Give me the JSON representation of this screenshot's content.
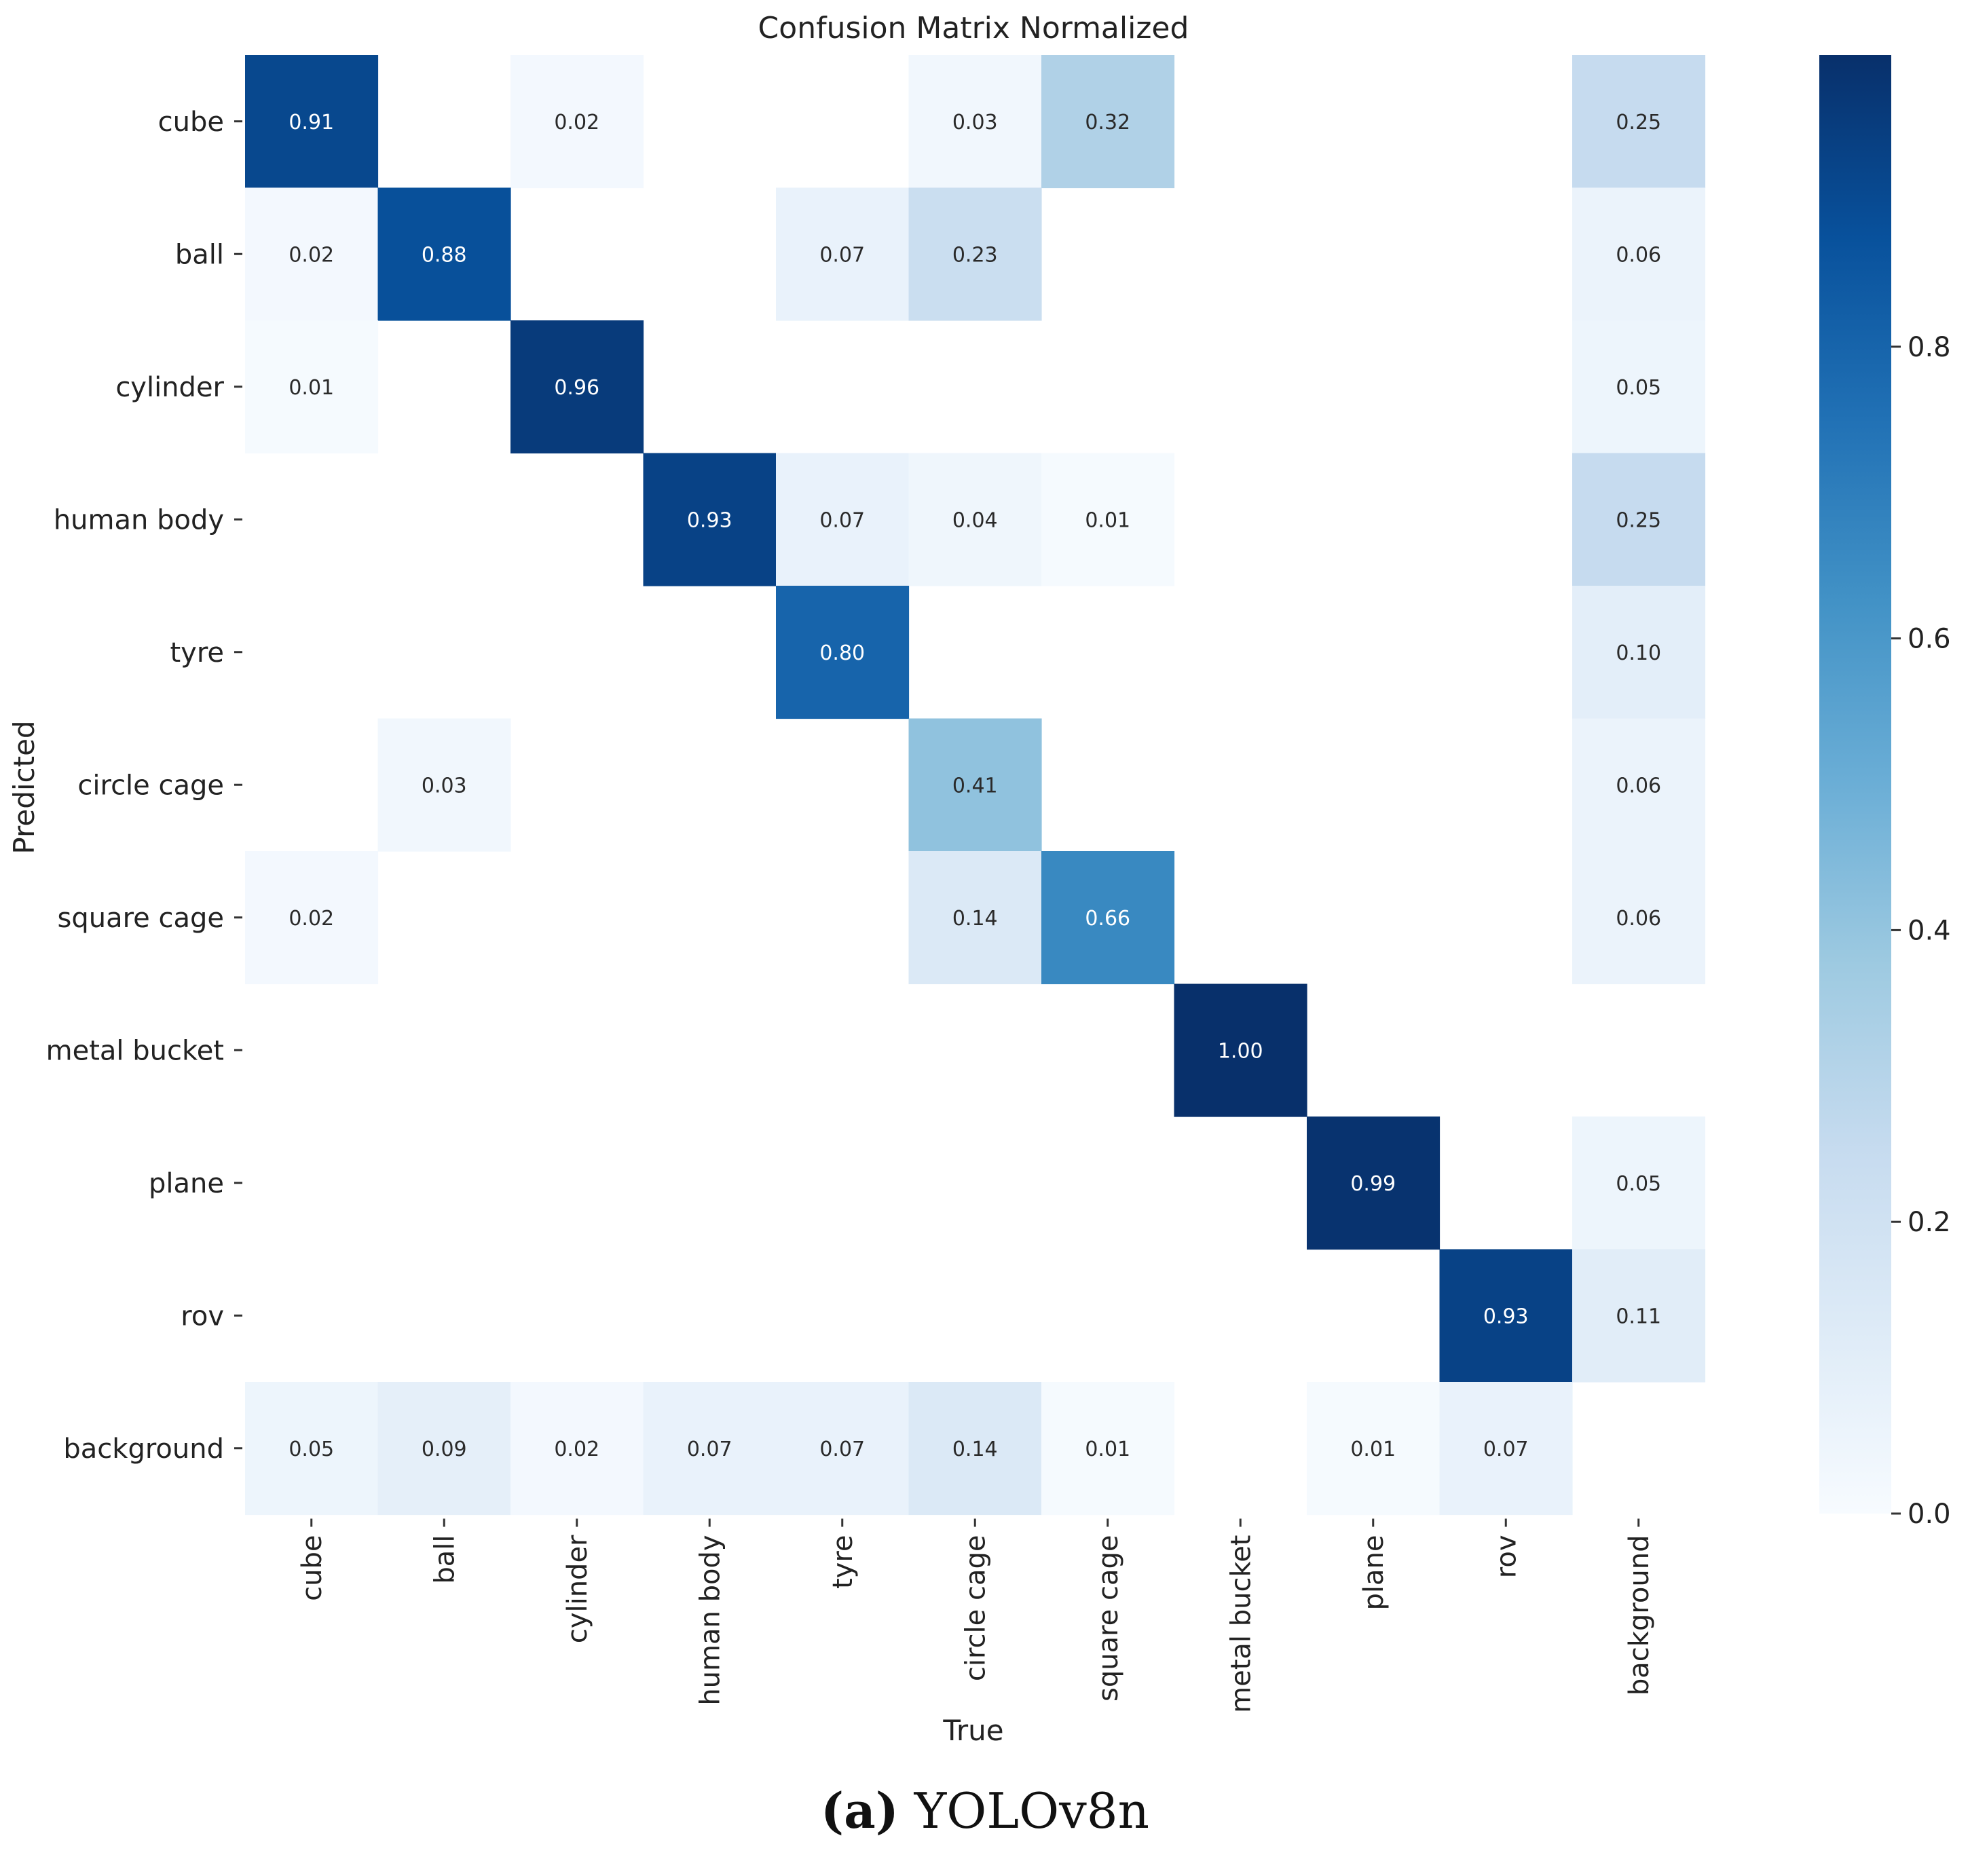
{
  "chart_data": {
    "type": "heatmap",
    "title": "Confusion Matrix Normalized",
    "xlabel": "True",
    "ylabel": "Predicted",
    "x_categories": [
      "cube",
      "ball",
      "cylinder",
      "human body",
      "tyre",
      "circle cage",
      "square cage",
      "metal bucket",
      "plane",
      "rov",
      "background"
    ],
    "y_categories": [
      "cube",
      "ball",
      "cylinder",
      "human body",
      "tyre",
      "circle cage",
      "square cage",
      "metal bucket",
      "plane",
      "rov",
      "background"
    ],
    "values": [
      [
        0.91,
        null,
        0.02,
        null,
        null,
        0.03,
        0.32,
        null,
        null,
        null,
        0.25
      ],
      [
        0.02,
        0.88,
        null,
        null,
        0.07,
        0.23,
        null,
        null,
        null,
        null,
        0.06
      ],
      [
        0.01,
        null,
        0.96,
        null,
        null,
        null,
        null,
        null,
        null,
        null,
        0.05
      ],
      [
        null,
        null,
        null,
        0.93,
        0.07,
        0.04,
        0.01,
        null,
        null,
        null,
        0.25
      ],
      [
        null,
        null,
        null,
        null,
        0.8,
        null,
        null,
        null,
        null,
        null,
        0.1
      ],
      [
        null,
        0.03,
        null,
        null,
        null,
        0.41,
        null,
        null,
        null,
        null,
        0.06
      ],
      [
        0.02,
        null,
        null,
        null,
        null,
        0.14,
        0.66,
        null,
        null,
        null,
        0.06
      ],
      [
        null,
        null,
        null,
        null,
        null,
        null,
        null,
        1.0,
        null,
        null,
        null
      ],
      [
        null,
        null,
        null,
        null,
        null,
        null,
        null,
        null,
        0.99,
        null,
        0.05
      ],
      [
        null,
        null,
        null,
        null,
        null,
        null,
        null,
        null,
        null,
        0.93,
        0.11
      ],
      [
        0.05,
        0.09,
        0.02,
        0.07,
        0.07,
        0.14,
        0.01,
        null,
        0.01,
        0.07,
        null
      ]
    ],
    "value_labels": [
      [
        "0.91",
        "",
        "0.02",
        "",
        "",
        "0.03",
        "0.32",
        "",
        "",
        "",
        "0.25"
      ],
      [
        "0.02",
        "0.88",
        "",
        "",
        "0.07",
        "0.23",
        "",
        "",
        "",
        "",
        "0.06"
      ],
      [
        "0.01",
        "",
        "0.96",
        "",
        "",
        "",
        "",
        "",
        "",
        "",
        "0.05"
      ],
      [
        "",
        "",
        "",
        "0.93",
        "0.07",
        "0.04",
        "0.01",
        "",
        "",
        "",
        "0.25"
      ],
      [
        "",
        "",
        "",
        "",
        "0.80",
        "",
        "",
        "",
        "",
        "",
        "0.10"
      ],
      [
        "",
        "0.03",
        "",
        "",
        "",
        "0.41",
        "",
        "",
        "",
        "",
        "0.06"
      ],
      [
        "0.02",
        "",
        "",
        "",
        "",
        "0.14",
        "0.66",
        "",
        "",
        "",
        "0.06"
      ],
      [
        "",
        "",
        "",
        "",
        "",
        "",
        "",
        "1.00",
        "",
        "",
        ""
      ],
      [
        "",
        "",
        "",
        "",
        "",
        "",
        "",
        "",
        "0.99",
        "",
        "0.05"
      ],
      [
        "",
        "",
        "",
        "",
        "",
        "",
        "",
        "",
        "",
        "0.93",
        "0.11"
      ],
      [
        "0.05",
        "0.09",
        "0.02",
        "0.07",
        "0.07",
        "0.14",
        "0.01",
        "",
        "0.01",
        "0.07",
        ""
      ]
    ],
    "colormap": "Blues",
    "color_range": [
      0.0,
      1.0
    ],
    "colorbar_ticks": [
      0.0,
      0.2,
      0.4,
      0.6,
      0.8
    ],
    "colorbar_tick_labels": [
      "0.0",
      "0.2",
      "0.4",
      "0.6",
      "0.8"
    ]
  },
  "caption": {
    "label": "(a)",
    "text": "YOLOv8n"
  }
}
